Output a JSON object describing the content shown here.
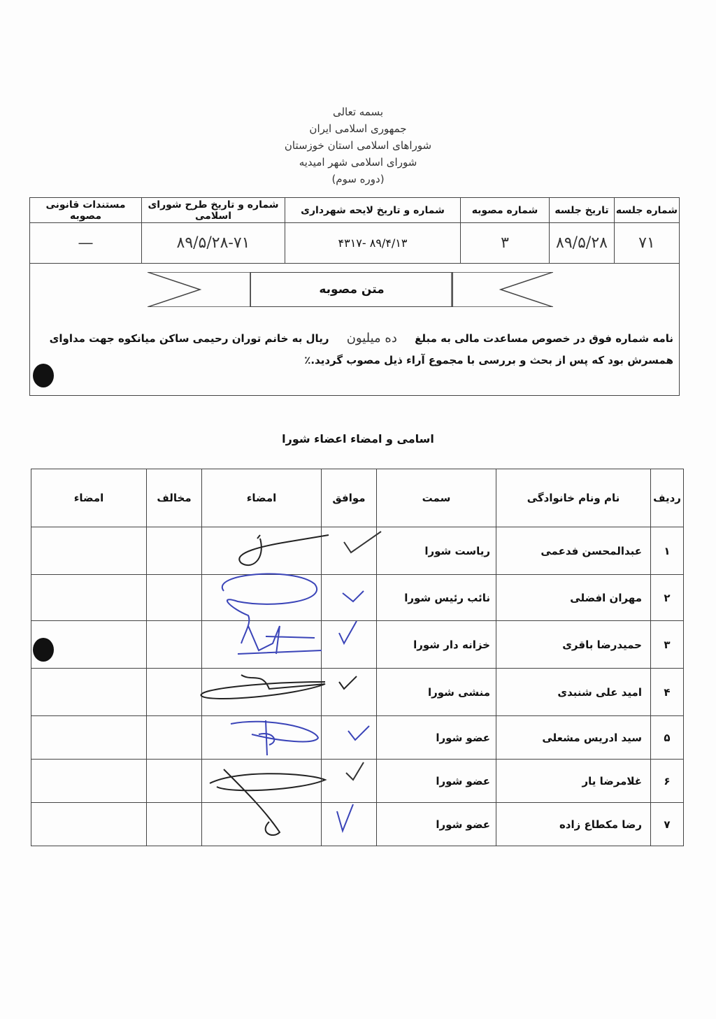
{
  "header": {
    "lines": [
      "بسمه تعالی",
      "جمهوری اسلامی ایران",
      "شوراهای اسلامی استان خوزستان",
      "شورای اسلامی شهر امیدیه",
      "(دوره سوم)"
    ]
  },
  "meta_table": {
    "headers": [
      "شماره جلسه",
      "تاریخ جلسه",
      "شماره مصوبه",
      "شماره و تاریخ  لایحه شهرداری",
      "شماره و تاریخ طرح شورای اسلامی",
      "مستندات قانونی مصوبه"
    ],
    "values": [
      "۷۱",
      "۸۹/۵/۲۸",
      "۳",
      "۸۹/۴/۱۳  -۴۳۱۷",
      "۸۹/۵/۲۸-۷۱",
      "—"
    ]
  },
  "resolution": {
    "banner": "متن مصوبه",
    "text_before": "نامه شماره فوق در خصوص مساعدت مالی به مبلغ",
    "amount_handwritten": "ده میلیون",
    "text_after": "ریال به خانم توران رحیمی ساکن میانکوه جهت مداوای همسرش بود که پس از بحث و بررسی با مجموع آراء ذیل مصوب گردید.٪"
  },
  "members": {
    "title": "اسامی و امضاء اعضاء شورا",
    "headers": [
      "ردیف",
      "نام ونام خانوادگی",
      "سمت",
      "موافق",
      "امضاء",
      "مخالف",
      "امضاء"
    ],
    "rows": [
      {
        "n": "۱",
        "name": "عبدالمحسن فدعمی",
        "role": "ریاست شورا",
        "approve": true
      },
      {
        "n": "۲",
        "name": "مهران افضلی",
        "role": "نائب رئیس شورا",
        "approve": true
      },
      {
        "n": "۳",
        "name": "حمیدرضا باقری",
        "role": "خزانه دار شورا",
        "approve": true
      },
      {
        "n": "۴",
        "name": "امید علی شنبدی",
        "role": "منشی شورا",
        "approve": true
      },
      {
        "n": "۵",
        "name": "سید ادریس مشعلی",
        "role": "عضو شورا",
        "approve": true
      },
      {
        "n": "۶",
        "name": "غلامرضا یار",
        "role": "عضو شورا",
        "approve": true
      },
      {
        "n": "۷",
        "name": "رضا مکطاع زاده",
        "role": "عضو شورا",
        "approve": true
      }
    ]
  },
  "colors": {
    "ink_blue": "#3a44b8",
    "ink_black": "#222222"
  }
}
